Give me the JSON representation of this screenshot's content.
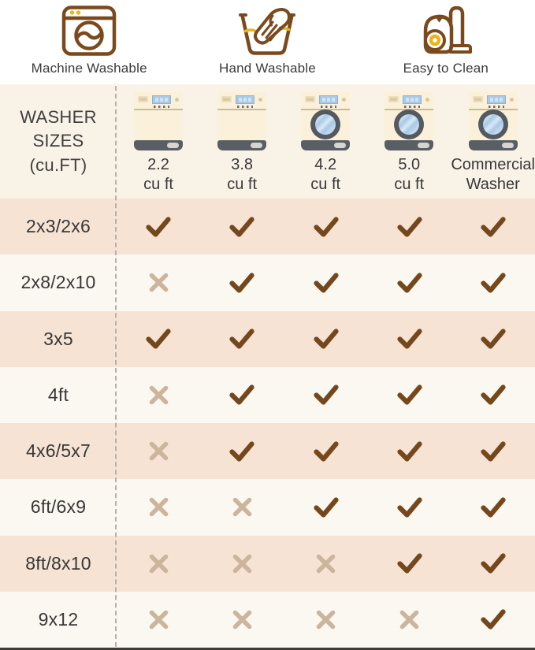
{
  "colors": {
    "icon_brown": "#7a4a1e",
    "accent_yellow": "#ecb519",
    "check_brown": "#74481c",
    "x_tan": "#cbb59c",
    "row_peach": "#f6e3d4",
    "row_cream": "#fbf8f1",
    "header_band": "#f9f3e7"
  },
  "features": [
    {
      "label": "Machine Washable",
      "icon": "washing-machine-icon"
    },
    {
      "label": "Hand Washable",
      "icon": "hand-wash-icon"
    },
    {
      "label": "Easy to Clean",
      "icon": "vacuum-icon"
    }
  ],
  "table": {
    "header_label": "WASHER\nSIZES\n(cu.FT)",
    "columns": [
      {
        "line1": "2.2",
        "line2": "cu ft",
        "washer_type": "top-load"
      },
      {
        "line1": "3.8",
        "line2": "cu ft",
        "washer_type": "top-load"
      },
      {
        "line1": "4.2",
        "line2": "cu ft",
        "washer_type": "front-load"
      },
      {
        "line1": "5.0",
        "line2": "cu ft",
        "washer_type": "front-load"
      },
      {
        "line1": "Commercial",
        "line2": "Washer",
        "washer_type": "front-load"
      }
    ]
  },
  "chart_data": {
    "type": "table",
    "title": "WASHER SIZES (cu.FT)",
    "columns": [
      "2.2 cu ft",
      "3.8 cu ft",
      "4.2 cu ft",
      "5.0 cu ft",
      "Commercial Washer"
    ],
    "rows": [
      {
        "label": "2x3/2x6",
        "values": [
          true,
          true,
          true,
          true,
          true
        ]
      },
      {
        "label": "2x8/2x10",
        "values": [
          false,
          true,
          true,
          true,
          true
        ]
      },
      {
        "label": "3x5",
        "values": [
          true,
          true,
          true,
          true,
          true
        ]
      },
      {
        "label": "4ft",
        "values": [
          false,
          true,
          true,
          true,
          true
        ]
      },
      {
        "label": "4x6/5x7",
        "values": [
          false,
          true,
          true,
          true,
          true
        ]
      },
      {
        "label": "6ft/6x9",
        "values": [
          false,
          false,
          true,
          true,
          true
        ]
      },
      {
        "label": "8ft/8x10",
        "values": [
          false,
          false,
          false,
          true,
          true
        ]
      },
      {
        "label": "9x12",
        "values": [
          false,
          false,
          false,
          false,
          true
        ]
      }
    ],
    "legend": {
      "check_means": "yes",
      "x_means": "no"
    }
  }
}
